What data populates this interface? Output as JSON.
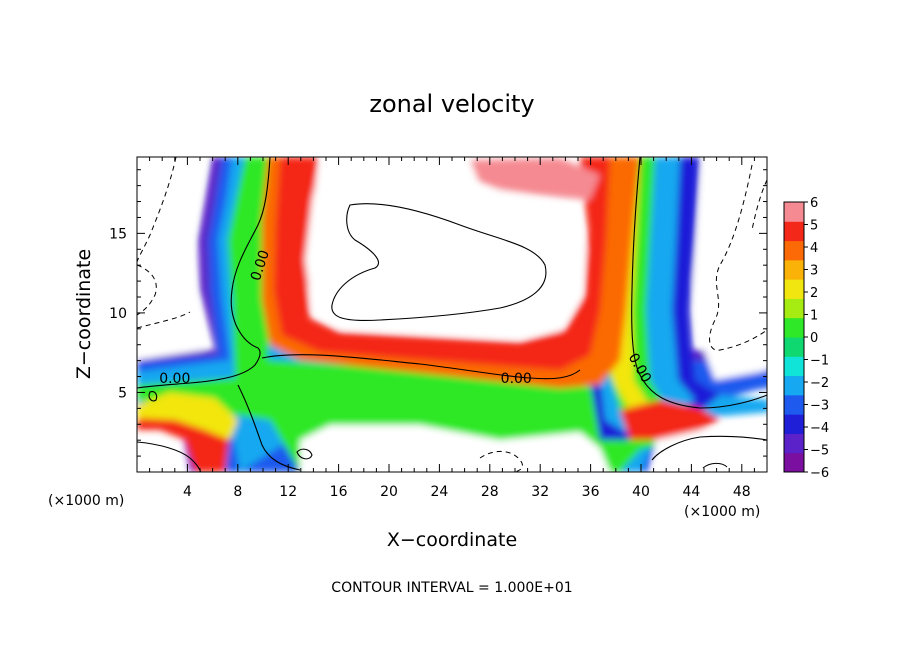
{
  "chart_data": {
    "type": "heatmap",
    "title": "zonal velocity",
    "xlabel": "X−coordinate",
    "ylabel": "Z−coordinate",
    "x_unit_left": "(×1000 m)",
    "x_unit_right": "(×1000 m)",
    "footer": "CONTOUR INTERVAL = 1.000E+01",
    "xlim": [
      0,
      50
    ],
    "ylim": [
      0,
      19.8
    ],
    "x_ticks": [
      4,
      8,
      12,
      16,
      20,
      24,
      28,
      32,
      36,
      40,
      44,
      48
    ],
    "y_ticks": [
      5,
      10,
      15
    ],
    "colorbar": {
      "min": -6,
      "max": 6,
      "labels": [
        "6",
        "5",
        "4",
        "3",
        "2",
        "1",
        "0",
        "−1",
        "−2",
        "−3",
        "−4",
        "−5",
        "−6"
      ],
      "colors": [
        "#7a0fa0",
        "#5a22c8",
        "#1f1fd8",
        "#1e5aee",
        "#16a8f0",
        "#10e4d8",
        "#10d870",
        "#2fe828",
        "#a6ec12",
        "#f2e610",
        "#fbb208",
        "#fb6a06",
        "#f42818",
        "#f58a92"
      ]
    },
    "contour_labels": [
      {
        "text": "0.00",
        "x": 10.1,
        "y": 12.9,
        "rotate": -72
      },
      {
        "text": "0.00",
        "x": 3.0,
        "y": 5.6,
        "rotate": 0
      },
      {
        "text": "0.00",
        "x": 30.1,
        "y": 5.6,
        "rotate": 0
      },
      {
        "text": "0.00",
        "x": 39.6,
        "y": 6.4,
        "rotate": 60
      }
    ]
  }
}
